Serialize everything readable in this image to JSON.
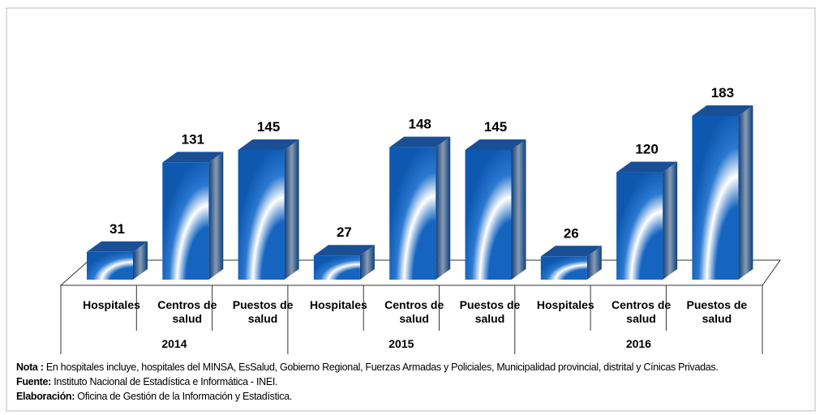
{
  "chart_data": {
    "type": "bar",
    "groups": [
      {
        "name": "2014",
        "categories": [
          "Hospitales",
          "Centros de salud",
          "Puestos de salud"
        ],
        "values": [
          31,
          131,
          145
        ]
      },
      {
        "name": "2015",
        "categories": [
          "Hospitales",
          "Centros de salud",
          "Puestos de salud"
        ],
        "values": [
          27,
          148,
          145
        ]
      },
      {
        "name": "2016",
        "categories": [
          "Hospitales",
          "Centros de salud",
          "Puestos de salud"
        ],
        "values": [
          26,
          120,
          183
        ]
      }
    ],
    "color": "#1565c0"
  },
  "notes": [
    {
      "label": "Nota :",
      "text": "En hospitales  incluye, hospitales del MINSA, EsSalud, Gobierno Regional, Fuerzas Armadas y Policiales, Municipalidad provincial, distrital y Cínicas Privadas."
    },
    {
      "label": "Fuente:",
      "text": "Instituto Nacional de Estadística e Informática - INEI."
    },
    {
      "label": "Elaboración:",
      "text": "Oficina de Gestión de la Información y Estadística."
    }
  ]
}
